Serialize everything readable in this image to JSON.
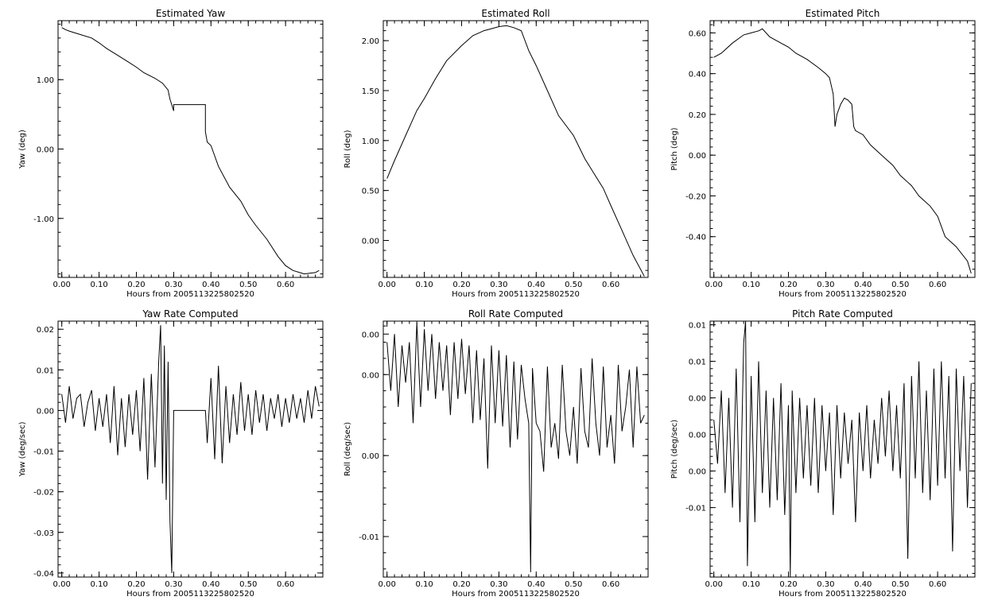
{
  "chart_data": [
    {
      "type": "line",
      "title": "Estimated Yaw",
      "xlabel": "Hours from 2005113225802520",
      "ylabel": "Yaw (deg)",
      "xlim": [
        -0.01,
        0.7
      ],
      "ylim": [
        -1.85,
        1.85
      ],
      "xticks": [
        "0.00",
        "0.10",
        "0.20",
        "0.30",
        "0.40",
        "0.50",
        "0.60"
      ],
      "yticks": [
        "-1.00",
        "0.00",
        "1.00"
      ],
      "ytick_values": [
        -1,
        0,
        1
      ],
      "series": [
        {
          "x": [
            0,
            0.01,
            0.02,
            0.05,
            0.08,
            0.1,
            0.12,
            0.15,
            0.18,
            0.2,
            0.22,
            0.25,
            0.27,
            0.285,
            0.29,
            0.3,
            0.3,
            0.385,
            0.385,
            0.39,
            0.4,
            0.42,
            0.45,
            0.48,
            0.5,
            0.52,
            0.55,
            0.58,
            0.6,
            0.62,
            0.65,
            0.68,
            0.69
          ],
          "y": [
            1.75,
            1.72,
            1.7,
            1.65,
            1.6,
            1.53,
            1.45,
            1.35,
            1.25,
            1.18,
            1.1,
            1.02,
            0.95,
            0.85,
            0.72,
            0.55,
            0.64,
            0.64,
            0.25,
            0.1,
            0.05,
            -0.25,
            -0.55,
            -0.75,
            -0.95,
            -1.1,
            -1.3,
            -1.55,
            -1.68,
            -1.75,
            -1.8,
            -1.78,
            -1.75
          ]
        }
      ]
    },
    {
      "type": "line",
      "title": "Estimated Roll",
      "xlabel": "Hours from 2005113225802520",
      "ylabel": "Roll (deg)",
      "xlim": [
        -0.01,
        0.7
      ],
      "ylim": [
        -0.37,
        2.2
      ],
      "xticks": [
        "0.00",
        "0.10",
        "0.20",
        "0.30",
        "0.40",
        "0.50",
        "0.60"
      ],
      "yticks": [
        "0.00",
        "0.50",
        "1.00",
        "1.50",
        "2.00"
      ],
      "ytick_values": [
        0,
        0.5,
        1,
        1.5,
        2
      ],
      "series": [
        {
          "x": [
            0,
            0.02,
            0.05,
            0.08,
            0.1,
            0.13,
            0.16,
            0.2,
            0.23,
            0.26,
            0.28,
            0.3,
            0.32,
            0.34,
            0.36,
            0.38,
            0.4,
            0.43,
            0.46,
            0.5,
            0.53,
            0.55,
            0.58,
            0.6,
            0.63,
            0.66,
            0.69
          ],
          "y": [
            0.62,
            0.8,
            1.05,
            1.3,
            1.42,
            1.62,
            1.8,
            1.95,
            2.05,
            2.1,
            2.12,
            2.14,
            2.15,
            2.13,
            2.1,
            1.9,
            1.75,
            1.5,
            1.25,
            1.05,
            0.82,
            0.7,
            0.52,
            0.35,
            0.1,
            -0.15,
            -0.36
          ]
        }
      ]
    },
    {
      "type": "line",
      "title": "Estimated Pitch",
      "xlabel": "Hours from 2005113225802520",
      "ylabel": "Pitch (deg)",
      "xlim": [
        -0.01,
        0.7
      ],
      "ylim": [
        -0.6,
        0.66
      ],
      "xticks": [
        "0.00",
        "0.10",
        "0.20",
        "0.30",
        "0.40",
        "0.50",
        "0.60"
      ],
      "yticks": [
        "-0.40",
        "-0.20",
        "0.00",
        "0.20",
        "0.40",
        "0.60"
      ],
      "ytick_values": [
        -0.4,
        -0.2,
        0,
        0.2,
        0.4,
        0.6
      ],
      "series": [
        {
          "x": [
            0,
            0.02,
            0.05,
            0.08,
            0.1,
            0.12,
            0.13,
            0.15,
            0.18,
            0.2,
            0.22,
            0.25,
            0.28,
            0.3,
            0.31,
            0.32,
            0.325,
            0.33,
            0.34,
            0.35,
            0.36,
            0.37,
            0.375,
            0.38,
            0.4,
            0.42,
            0.45,
            0.48,
            0.5,
            0.53,
            0.55,
            0.58,
            0.6,
            0.62,
            0.65,
            0.68,
            0.69
          ],
          "y": [
            0.48,
            0.5,
            0.55,
            0.59,
            0.6,
            0.61,
            0.62,
            0.58,
            0.55,
            0.53,
            0.5,
            0.47,
            0.43,
            0.4,
            0.38,
            0.3,
            0.14,
            0.2,
            0.25,
            0.28,
            0.27,
            0.25,
            0.14,
            0.12,
            0.1,
            0.05,
            0.0,
            -0.05,
            -0.1,
            -0.15,
            -0.2,
            -0.25,
            -0.3,
            -0.4,
            -0.45,
            -0.52,
            -0.58
          ]
        }
      ]
    },
    {
      "type": "line",
      "title": "Yaw Rate Computed",
      "xlabel": "Hours from 2005113225802520",
      "ylabel": "Yaw (deg/sec)",
      "xlim": [
        -0.01,
        0.7
      ],
      "ylim": [
        -0.041,
        0.022
      ],
      "xticks": [
        "0.00",
        "0.10",
        "0.20",
        "0.30",
        "0.40",
        "0.50",
        "0.60"
      ],
      "yticks": [
        "-0.04",
        "-0.03",
        "-0.02",
        "-0.01",
        "0.00",
        "0.01",
        "0.02"
      ],
      "ytick_values": [
        -0.04,
        -0.03,
        -0.02,
        -0.01,
        0,
        0.01,
        0.02
      ],
      "series": [
        {
          "x": [
            0,
            0.01,
            0.02,
            0.03,
            0.04,
            0.05,
            0.06,
            0.07,
            0.08,
            0.09,
            0.1,
            0.11,
            0.12,
            0.13,
            0.14,
            0.15,
            0.16,
            0.17,
            0.18,
            0.19,
            0.2,
            0.21,
            0.22,
            0.23,
            0.24,
            0.25,
            0.26,
            0.265,
            0.27,
            0.275,
            0.28,
            0.285,
            0.29,
            0.295,
            0.3,
            0.385,
            0.39,
            0.4,
            0.41,
            0.42,
            0.43,
            0.44,
            0.45,
            0.46,
            0.47,
            0.48,
            0.49,
            0.5,
            0.51,
            0.52,
            0.53,
            0.54,
            0.55,
            0.56,
            0.57,
            0.58,
            0.59,
            0.6,
            0.61,
            0.62,
            0.63,
            0.64,
            0.65,
            0.66,
            0.67,
            0.68,
            0.69
          ],
          "y": [
            0.004,
            -0.003,
            0.006,
            -0.002,
            0.003,
            0.004,
            -0.004,
            0.002,
            0.005,
            -0.005,
            0.003,
            -0.004,
            0.004,
            -0.008,
            0.006,
            -0.011,
            0.003,
            -0.009,
            0.004,
            -0.006,
            0.005,
            -0.01,
            0.008,
            -0.017,
            0.009,
            -0.014,
            0.012,
            0.021,
            -0.018,
            0.016,
            -0.022,
            0.012,
            -0.027,
            -0.04,
            0.0,
            0.0,
            -0.008,
            0.008,
            -0.012,
            0.011,
            -0.013,
            0.006,
            -0.008,
            0.004,
            -0.006,
            0.007,
            -0.005,
            0.004,
            -0.006,
            0.005,
            -0.003,
            0.004,
            -0.005,
            0.003,
            -0.002,
            0.004,
            -0.004,
            0.003,
            -0.003,
            0.004,
            -0.002,
            0.003,
            -0.003,
            0.005,
            -0.002,
            0.006,
            0.001
          ]
        }
      ]
    },
    {
      "type": "line",
      "title": "Roll Rate Computed",
      "xlabel": "Hours from 2005113225802520",
      "ylabel": "Roll (deg/sec)",
      "xlim": [
        -0.01,
        0.7
      ],
      "ylim": [
        -0.0125,
        0.0033
      ],
      "xticks": [
        "0.00",
        "0.10",
        "0.20",
        "0.30",
        "0.40",
        "0.50",
        "0.60"
      ],
      "yticks": [
        "-0.01",
        "0.00",
        "0.00",
        "0.00"
      ],
      "ytick_values": [
        -0.01,
        -0.005,
        0.0,
        0.0025
      ],
      "series": [
        {
          "x": [
            0,
            0.01,
            0.02,
            0.03,
            0.04,
            0.05,
            0.06,
            0.07,
            0.08,
            0.09,
            0.1,
            0.11,
            0.12,
            0.13,
            0.14,
            0.15,
            0.16,
            0.17,
            0.18,
            0.19,
            0.2,
            0.21,
            0.22,
            0.23,
            0.24,
            0.25,
            0.26,
            0.27,
            0.28,
            0.29,
            0.3,
            0.31,
            0.32,
            0.33,
            0.34,
            0.35,
            0.36,
            0.37,
            0.38,
            0.385,
            0.39,
            0.4,
            0.41,
            0.42,
            0.43,
            0.44,
            0.45,
            0.46,
            0.47,
            0.48,
            0.49,
            0.5,
            0.51,
            0.52,
            0.53,
            0.54,
            0.55,
            0.56,
            0.57,
            0.58,
            0.59,
            0.6,
            0.61,
            0.62,
            0.63,
            0.64,
            0.65,
            0.66,
            0.67,
            0.68,
            0.69
          ],
          "y": [
            0.002,
            -0.001,
            0.0025,
            -0.002,
            0.0018,
            -0.0005,
            0.002,
            -0.003,
            0.0032,
            -0.002,
            0.0028,
            -0.001,
            0.0025,
            -0.0015,
            0.002,
            -0.001,
            0.0018,
            -0.0025,
            0.002,
            -0.0015,
            0.0022,
            -0.0012,
            0.0018,
            -0.003,
            0.0015,
            -0.0028,
            0.001,
            -0.0058,
            0.0018,
            -0.003,
            0.0015,
            -0.0032,
            0.0012,
            -0.0045,
            0.0008,
            -0.004,
            0.0006,
            -0.0015,
            -0.003,
            -0.0122,
            0.0004,
            -0.003,
            -0.0035,
            -0.006,
            0.0005,
            -0.0045,
            -0.003,
            -0.0052,
            0.0006,
            -0.0035,
            -0.005,
            -0.002,
            -0.0055,
            0.0004,
            -0.0035,
            -0.0045,
            0.001,
            -0.003,
            -0.005,
            0.0005,
            -0.0045,
            -0.0025,
            -0.0055,
            0.0006,
            -0.0035,
            -0.002,
            0.0003,
            -0.0045,
            0.0005,
            -0.003,
            -0.0025
          ]
        }
      ]
    },
    {
      "type": "line",
      "title": "Pitch Rate Computed",
      "xlabel": "Hours from 2005113225802520",
      "ylabel": "Pitch (deg/sec)",
      "xlim": [
        -0.01,
        0.7
      ],
      "ylim": [
        -0.0195,
        0.0155
      ],
      "xticks": [
        "0.00",
        "0.10",
        "0.20",
        "0.30",
        "0.40",
        "0.50",
        "0.60"
      ],
      "yticks": [
        "-0.01",
        "0.00",
        "0.00",
        "0.00",
        "0.01",
        "0.01"
      ],
      "ytick_values": [
        -0.01,
        -0.005,
        0.0,
        0.005,
        0.01,
        0.015
      ],
      "series": [
        {
          "x": [
            0,
            0.01,
            0.02,
            0.03,
            0.04,
            0.05,
            0.06,
            0.07,
            0.08,
            0.085,
            0.09,
            0.1,
            0.11,
            0.12,
            0.13,
            0.14,
            0.15,
            0.16,
            0.17,
            0.18,
            0.19,
            0.2,
            0.205,
            0.21,
            0.22,
            0.23,
            0.24,
            0.25,
            0.26,
            0.27,
            0.28,
            0.29,
            0.3,
            0.31,
            0.32,
            0.33,
            0.34,
            0.35,
            0.36,
            0.37,
            0.38,
            0.39,
            0.4,
            0.41,
            0.42,
            0.43,
            0.44,
            0.45,
            0.46,
            0.47,
            0.48,
            0.49,
            0.5,
            0.51,
            0.52,
            0.53,
            0.54,
            0.55,
            0.56,
            0.57,
            0.58,
            0.59,
            0.6,
            0.61,
            0.62,
            0.63,
            0.64,
            0.65,
            0.66,
            0.67,
            0.68,
            0.69
          ],
          "y": [
            0.002,
            -0.004,
            0.006,
            -0.008,
            0.005,
            -0.01,
            0.009,
            -0.012,
            0.0125,
            0.0155,
            -0.018,
            0.008,
            -0.012,
            0.01,
            -0.008,
            0.006,
            -0.01,
            0.005,
            -0.009,
            0.007,
            -0.011,
            0.004,
            -0.0195,
            0.006,
            -0.008,
            0.005,
            -0.006,
            0.004,
            -0.007,
            0.005,
            -0.008,
            0.004,
            -0.005,
            0.003,
            -0.011,
            0.004,
            -0.006,
            0.003,
            -0.004,
            0.002,
            -0.012,
            0.003,
            -0.005,
            0.004,
            -0.006,
            0.002,
            -0.004,
            0.005,
            -0.003,
            0.006,
            -0.005,
            0.004,
            -0.006,
            0.007,
            -0.017,
            0.008,
            -0.006,
            0.01,
            -0.008,
            0.006,
            -0.009,
            0.009,
            -0.007,
            0.01,
            -0.006,
            0.008,
            -0.016,
            0.009,
            -0.005,
            0.008,
            -0.01,
            0.007
          ]
        }
      ]
    }
  ]
}
